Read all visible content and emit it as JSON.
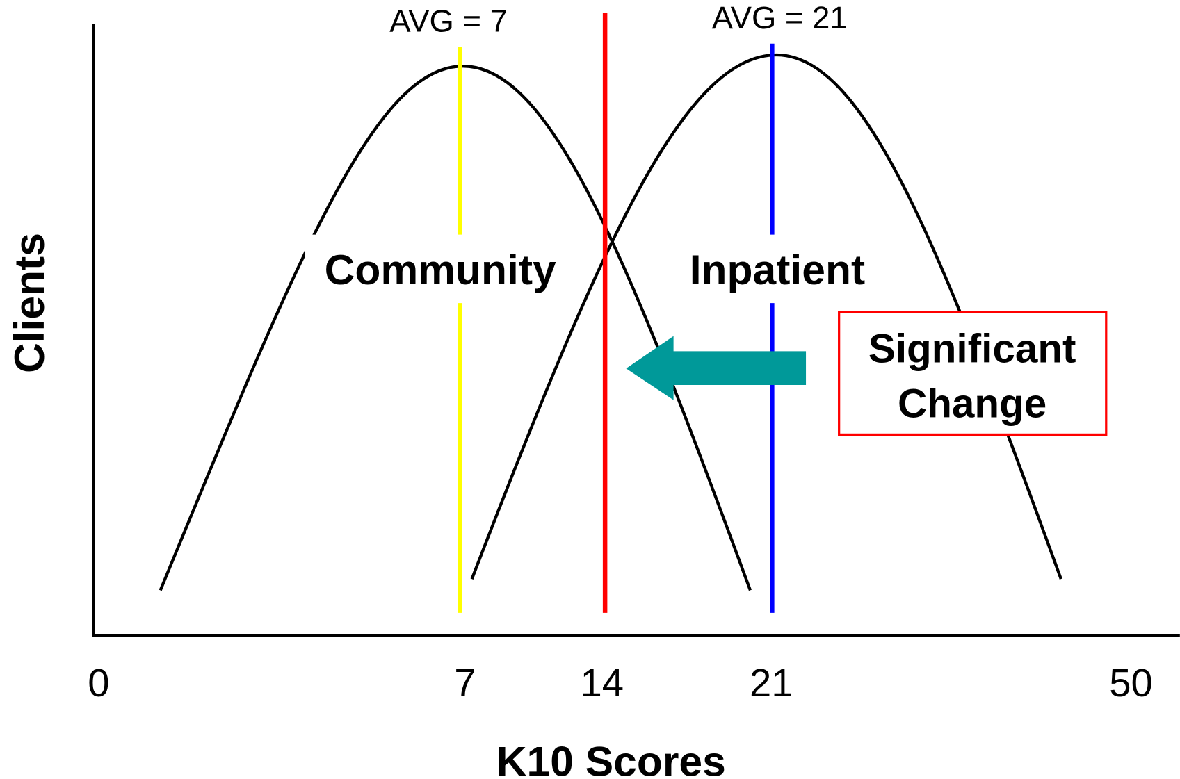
{
  "axis": {
    "x_label": "K10 Scores",
    "y_label": "Clients",
    "ticks": [
      "0",
      "7",
      "14",
      "21",
      "50"
    ]
  },
  "curves": [
    {
      "label": "Community",
      "average": "AVG = 7"
    },
    {
      "label": "Inpatient",
      "average": "AVG = 21"
    }
  ],
  "callout": {
    "lines": [
      "Significant",
      "Change"
    ]
  }
}
